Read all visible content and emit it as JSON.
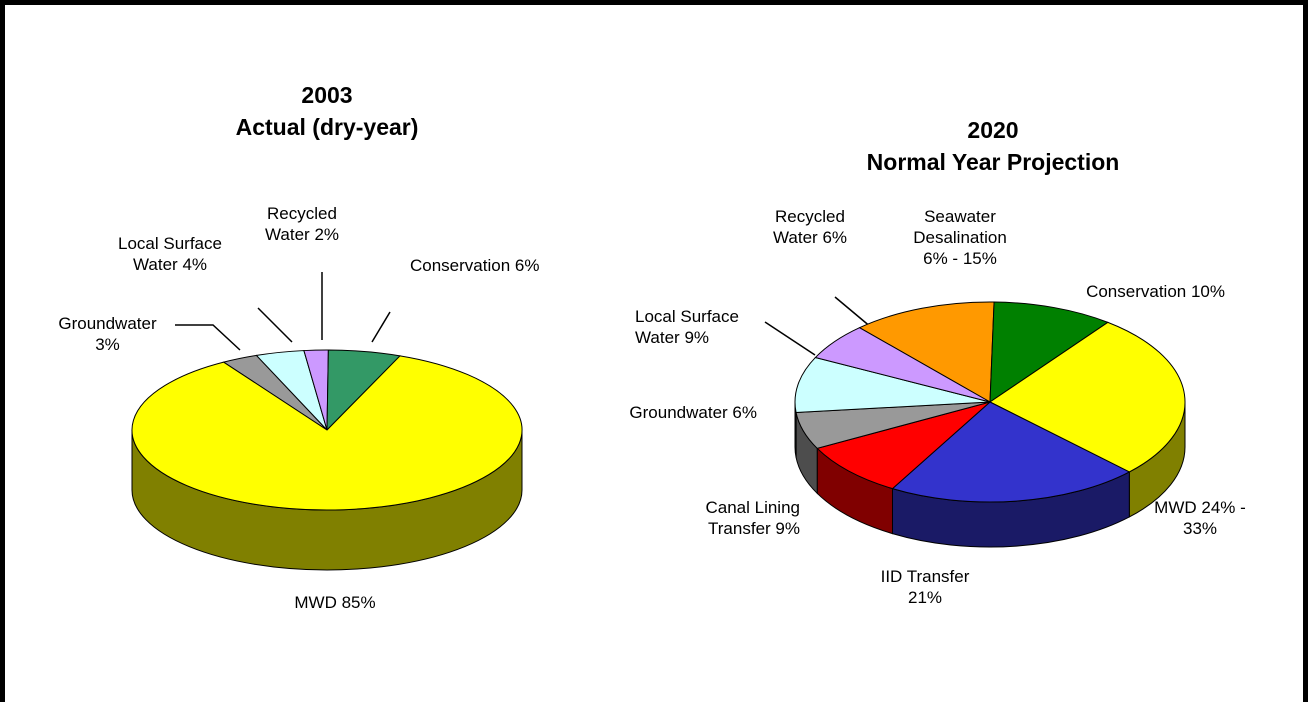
{
  "chart_data": [
    {
      "type": "pie",
      "title": "2003",
      "subtitle": "Actual (dry-year)",
      "categories": [
        "Groundwater",
        "Local Surface Water",
        "Recycled Water",
        "Conservation",
        "MWD"
      ],
      "values": [
        3,
        4,
        2,
        6,
        85
      ],
      "value_labels": [
        "3%",
        "4%",
        "2%",
        "6%",
        "85%"
      ],
      "colors": [
        "#999999",
        "#ccffff",
        "#cc99ff",
        "#339966",
        "#ffff00"
      ]
    },
    {
      "type": "pie",
      "title": "2020",
      "subtitle": "Normal Year Projection",
      "categories": [
        "Seawater Desalination",
        "Conservation",
        "MWD",
        "IID Transfer",
        "Canal Lining Transfer",
        "Groundwater",
        "Local Surface Water",
        "Recycled Water"
      ],
      "values": [
        12,
        10,
        27,
        21,
        9,
        6,
        9,
        6
      ],
      "value_labels": [
        "6%  - 15%",
        "10%",
        "24% - 33%",
        "21%",
        "9%",
        "6%",
        "9%",
        "6%"
      ],
      "colors": [
        "#ff9900",
        "#008000",
        "#ffff00",
        "#3333cc",
        "#ff0000",
        "#999999",
        "#ccffff",
        "#cc99ff"
      ]
    }
  ]
}
